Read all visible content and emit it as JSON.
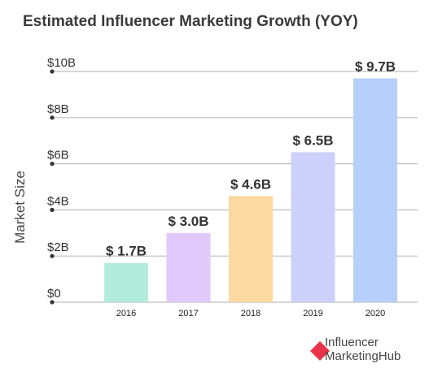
{
  "chart_data": {
    "type": "bar",
    "title": "Estimated Influencer Marketing Growth (YOY)",
    "ylabel": "Market Size",
    "xlabel": "",
    "categories": [
      "2016",
      "2017",
      "2018",
      "2019",
      "2020"
    ],
    "values": [
      1.7,
      3.0,
      4.6,
      6.5,
      9.7
    ],
    "value_labels": [
      "$ 1.7B",
      "$ 3.0B",
      "$ 4.6B",
      "$ 6.5B",
      "$ 9.7B"
    ],
    "ylim": [
      0,
      10
    ],
    "yticks": [
      0,
      2,
      4,
      6,
      8,
      10
    ],
    "ytick_labels": [
      "$0",
      "$2B",
      "$4B",
      "$6B",
      "$8B",
      "$10B"
    ],
    "bar_colors": [
      "#b3ecdc",
      "#e2c9fb",
      "#fcd9a0",
      "#cdd0fb",
      "#b6cffb"
    ],
    "grid": true,
    "legend": "none"
  },
  "branding": {
    "logo_line1": "Influencer",
    "logo_line2": "MarketingHub",
    "logo_accent": "#e8334a"
  }
}
